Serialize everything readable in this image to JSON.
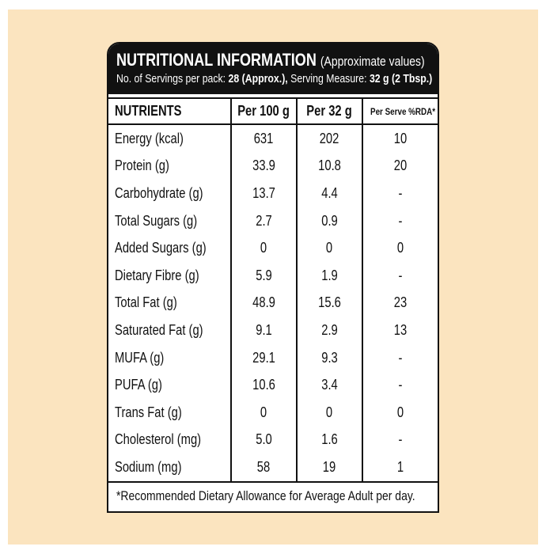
{
  "header": {
    "title": "NUTRITIONAL INFORMATION",
    "subtitle": "(Approximate values)",
    "servings_label": "No. of Servings per pack:",
    "servings_value": "28 (Approx.),",
    "measure_label": "Serving Measure:",
    "measure_value": "32 g (2 Tbsp.)"
  },
  "table": {
    "columns": [
      "NUTRIENTS",
      "Per 100 g",
      "Per 32 g",
      "Per Serve %RDA*"
    ],
    "rows": [
      [
        "Energy (kcal)",
        "631",
        "202",
        "10"
      ],
      [
        "Protein (g)",
        "33.9",
        "10.8",
        "20"
      ],
      [
        "Carbohydrate (g)",
        "13.7",
        "4.4",
        "-"
      ],
      [
        "Total Sugars (g)",
        "2.7",
        "0.9",
        "-"
      ],
      [
        "Added Sugars (g)",
        "0",
        "0",
        "0"
      ],
      [
        "Dietary Fibre (g)",
        "5.9",
        "1.9",
        "-"
      ],
      [
        "Total Fat (g)",
        "48.9",
        "15.6",
        "23"
      ],
      [
        "Saturated Fat (g)",
        "9.1",
        "2.9",
        "13"
      ],
      [
        "MUFA (g)",
        "29.1",
        "9.3",
        "-"
      ],
      [
        "PUFA (g)",
        "10.6",
        "3.4",
        "-"
      ],
      [
        "Trans Fat (g)",
        "0",
        "0",
        "0"
      ],
      [
        "Cholesterol (mg)",
        "5.0",
        "1.6",
        "-"
      ],
      [
        "Sodium (mg)",
        "58",
        "19",
        "1"
      ]
    ]
  },
  "footnote": "*Recommended Dietary Allowance for Average Adult per day."
}
